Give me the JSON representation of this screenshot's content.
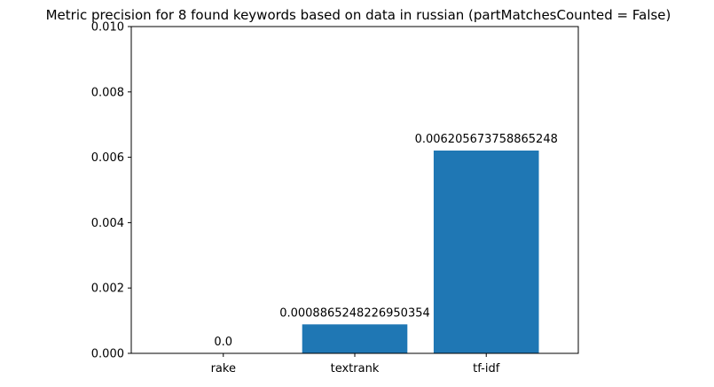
{
  "chart_data": {
    "type": "bar",
    "title": "Metric precision for 8 found keywords based on data in russian (partMatchesCounted = False)",
    "xlabel": "",
    "ylabel": "",
    "categories": [
      "rake",
      "textrank",
      "tf-idf"
    ],
    "values": [
      0.0,
      0.0008865248226950354,
      0.006205673758865248
    ],
    "data_labels": [
      "0.0",
      "0.0008865248226950354",
      "0.006205673758865248"
    ],
    "ylim": [
      0,
      0.01
    ],
    "yticks": [
      0.0,
      0.002,
      0.004,
      0.006,
      0.008,
      0.01
    ],
    "ytick_labels": [
      "0.000",
      "0.002",
      "0.004",
      "0.006",
      "0.008",
      "0.010"
    ],
    "bar_color": "#1f77b4",
    "grid": false,
    "legend": "none"
  }
}
